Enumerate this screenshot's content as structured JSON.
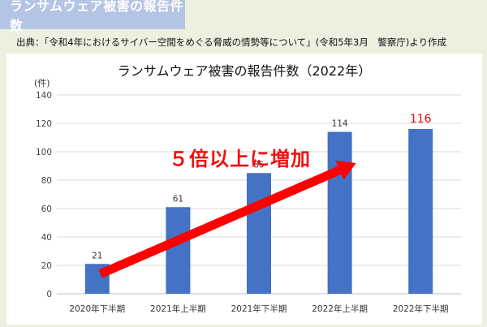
{
  "header": {
    "title": "ランサムウェア被害の報告件数"
  },
  "source": {
    "text": "出典：「令和4年におけるサイバー空間をめぐる脅威の情勢等について」(令和5年3月　警察庁)より作成"
  },
  "annotation": {
    "text": "５倍以上に増加",
    "color": "#f01010"
  },
  "colors": {
    "bar": "#4472c4",
    "highlight": "#ff0000",
    "grid": "#d9d9d9"
  },
  "chart_data": {
    "type": "bar",
    "title": "ランサムウェア被害の報告件数（2022年）",
    "ylabel": "(件)",
    "xlabel": "",
    "categories": [
      "2020年下半期",
      "2021年上半期",
      "2021年下半期",
      "2022年上半期",
      "2022年下半期"
    ],
    "values": [
      21,
      61,
      85,
      114,
      116
    ],
    "data_labels": [
      "21",
      "61",
      "85",
      "114",
      "116"
    ],
    "ylim": [
      0,
      140
    ],
    "yticks": [
      0,
      20,
      40,
      60,
      80,
      100,
      120,
      140
    ],
    "grid": true,
    "legend": "none"
  }
}
